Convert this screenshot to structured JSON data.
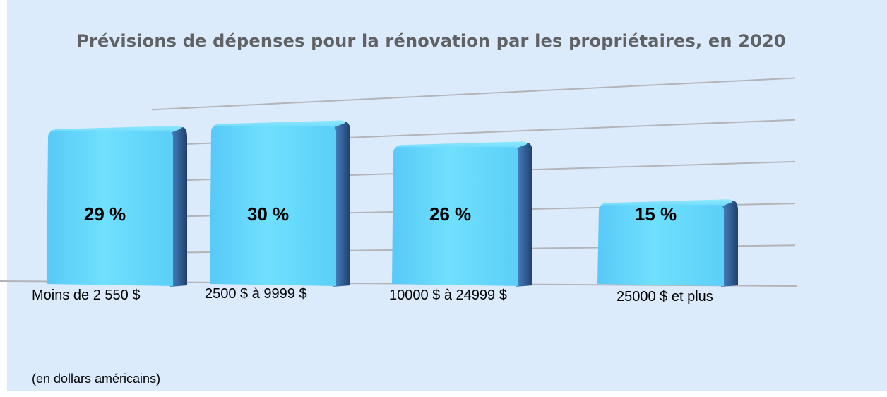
{
  "chart_data": {
    "type": "bar",
    "title": "Prévisions de dépenses pour la rénovation par les propriétaires, en 2020",
    "categories": [
      "Moins de 2 550 $",
      "2500 $ à 9999 $",
      "10000 $ à 24999 $",
      "25000 $ et plus"
    ],
    "values": [
      29,
      30,
      26,
      15
    ],
    "data_labels": [
      "29 %",
      "30 %",
      "26 %",
      "15 %"
    ],
    "unit": "%",
    "ylim": [
      0,
      36
    ],
    "grid": true,
    "legend": "none",
    "note": "(en dollars américains)",
    "colors": {
      "bar_front": "#62d6fb",
      "bar_side": "#2f5f99",
      "background": "#dcebfc",
      "grid": "#b4b4b8"
    }
  }
}
